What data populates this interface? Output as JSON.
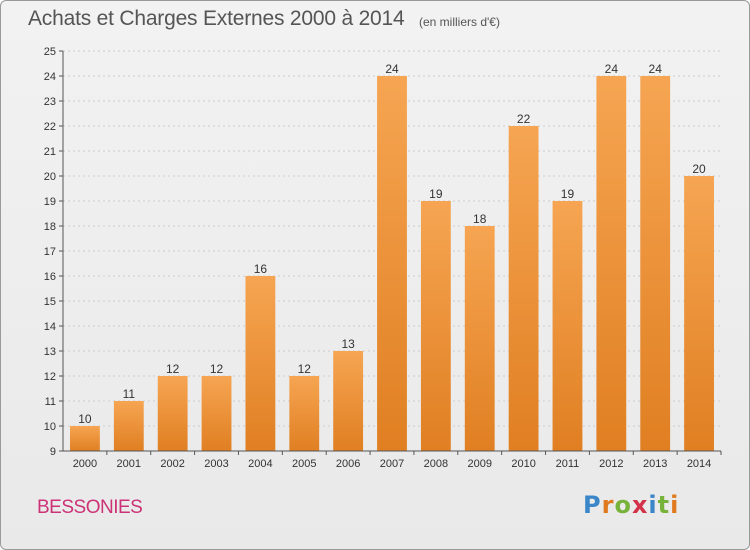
{
  "header": {
    "title": "Achats et Charges Externes 2000 à 2014",
    "unit": "(en milliers d'€)"
  },
  "footer": {
    "commune": "BESSONIES",
    "logo": [
      "P",
      "r",
      "o",
      "x",
      "i",
      "t",
      "i"
    ]
  },
  "colors": {
    "bar_light": "#f6a552",
    "bar_dark": "#e07f22",
    "axis": "#555555",
    "grid": "#cccccc",
    "commune": "#cc3377",
    "logo": [
      "#3b86c8",
      "#e07a1f",
      "#77b33b",
      "#d3334a",
      "#3b86c8",
      "#77b33b",
      "#e07a1f"
    ]
  },
  "chart_data": {
    "type": "bar",
    "title": "Achats et Charges Externes 2000 à 2014",
    "subtitle": "(en milliers d'€)",
    "categories": [
      "2000",
      "2001",
      "2002",
      "2003",
      "2004",
      "2005",
      "2006",
      "2007",
      "2008",
      "2009",
      "2010",
      "2011",
      "2012",
      "2013",
      "2014"
    ],
    "values": [
      10,
      11,
      12,
      12,
      16,
      12,
      13,
      24,
      19,
      18,
      22,
      19,
      24,
      24,
      20
    ],
    "data_labels": [
      "10",
      "11",
      "12",
      "12",
      "16",
      "12",
      "13",
      "24",
      "19",
      "18",
      "22",
      "19",
      "24",
      "24",
      "20"
    ],
    "ylim": [
      9,
      25
    ],
    "yticks": [
      "9",
      "10",
      "11",
      "12",
      "13",
      "14",
      "15",
      "16",
      "17",
      "18",
      "19",
      "20",
      "21",
      "22",
      "23",
      "24",
      "25"
    ],
    "grid": true,
    "legend": "none",
    "xlabel": "",
    "ylabel": ""
  }
}
